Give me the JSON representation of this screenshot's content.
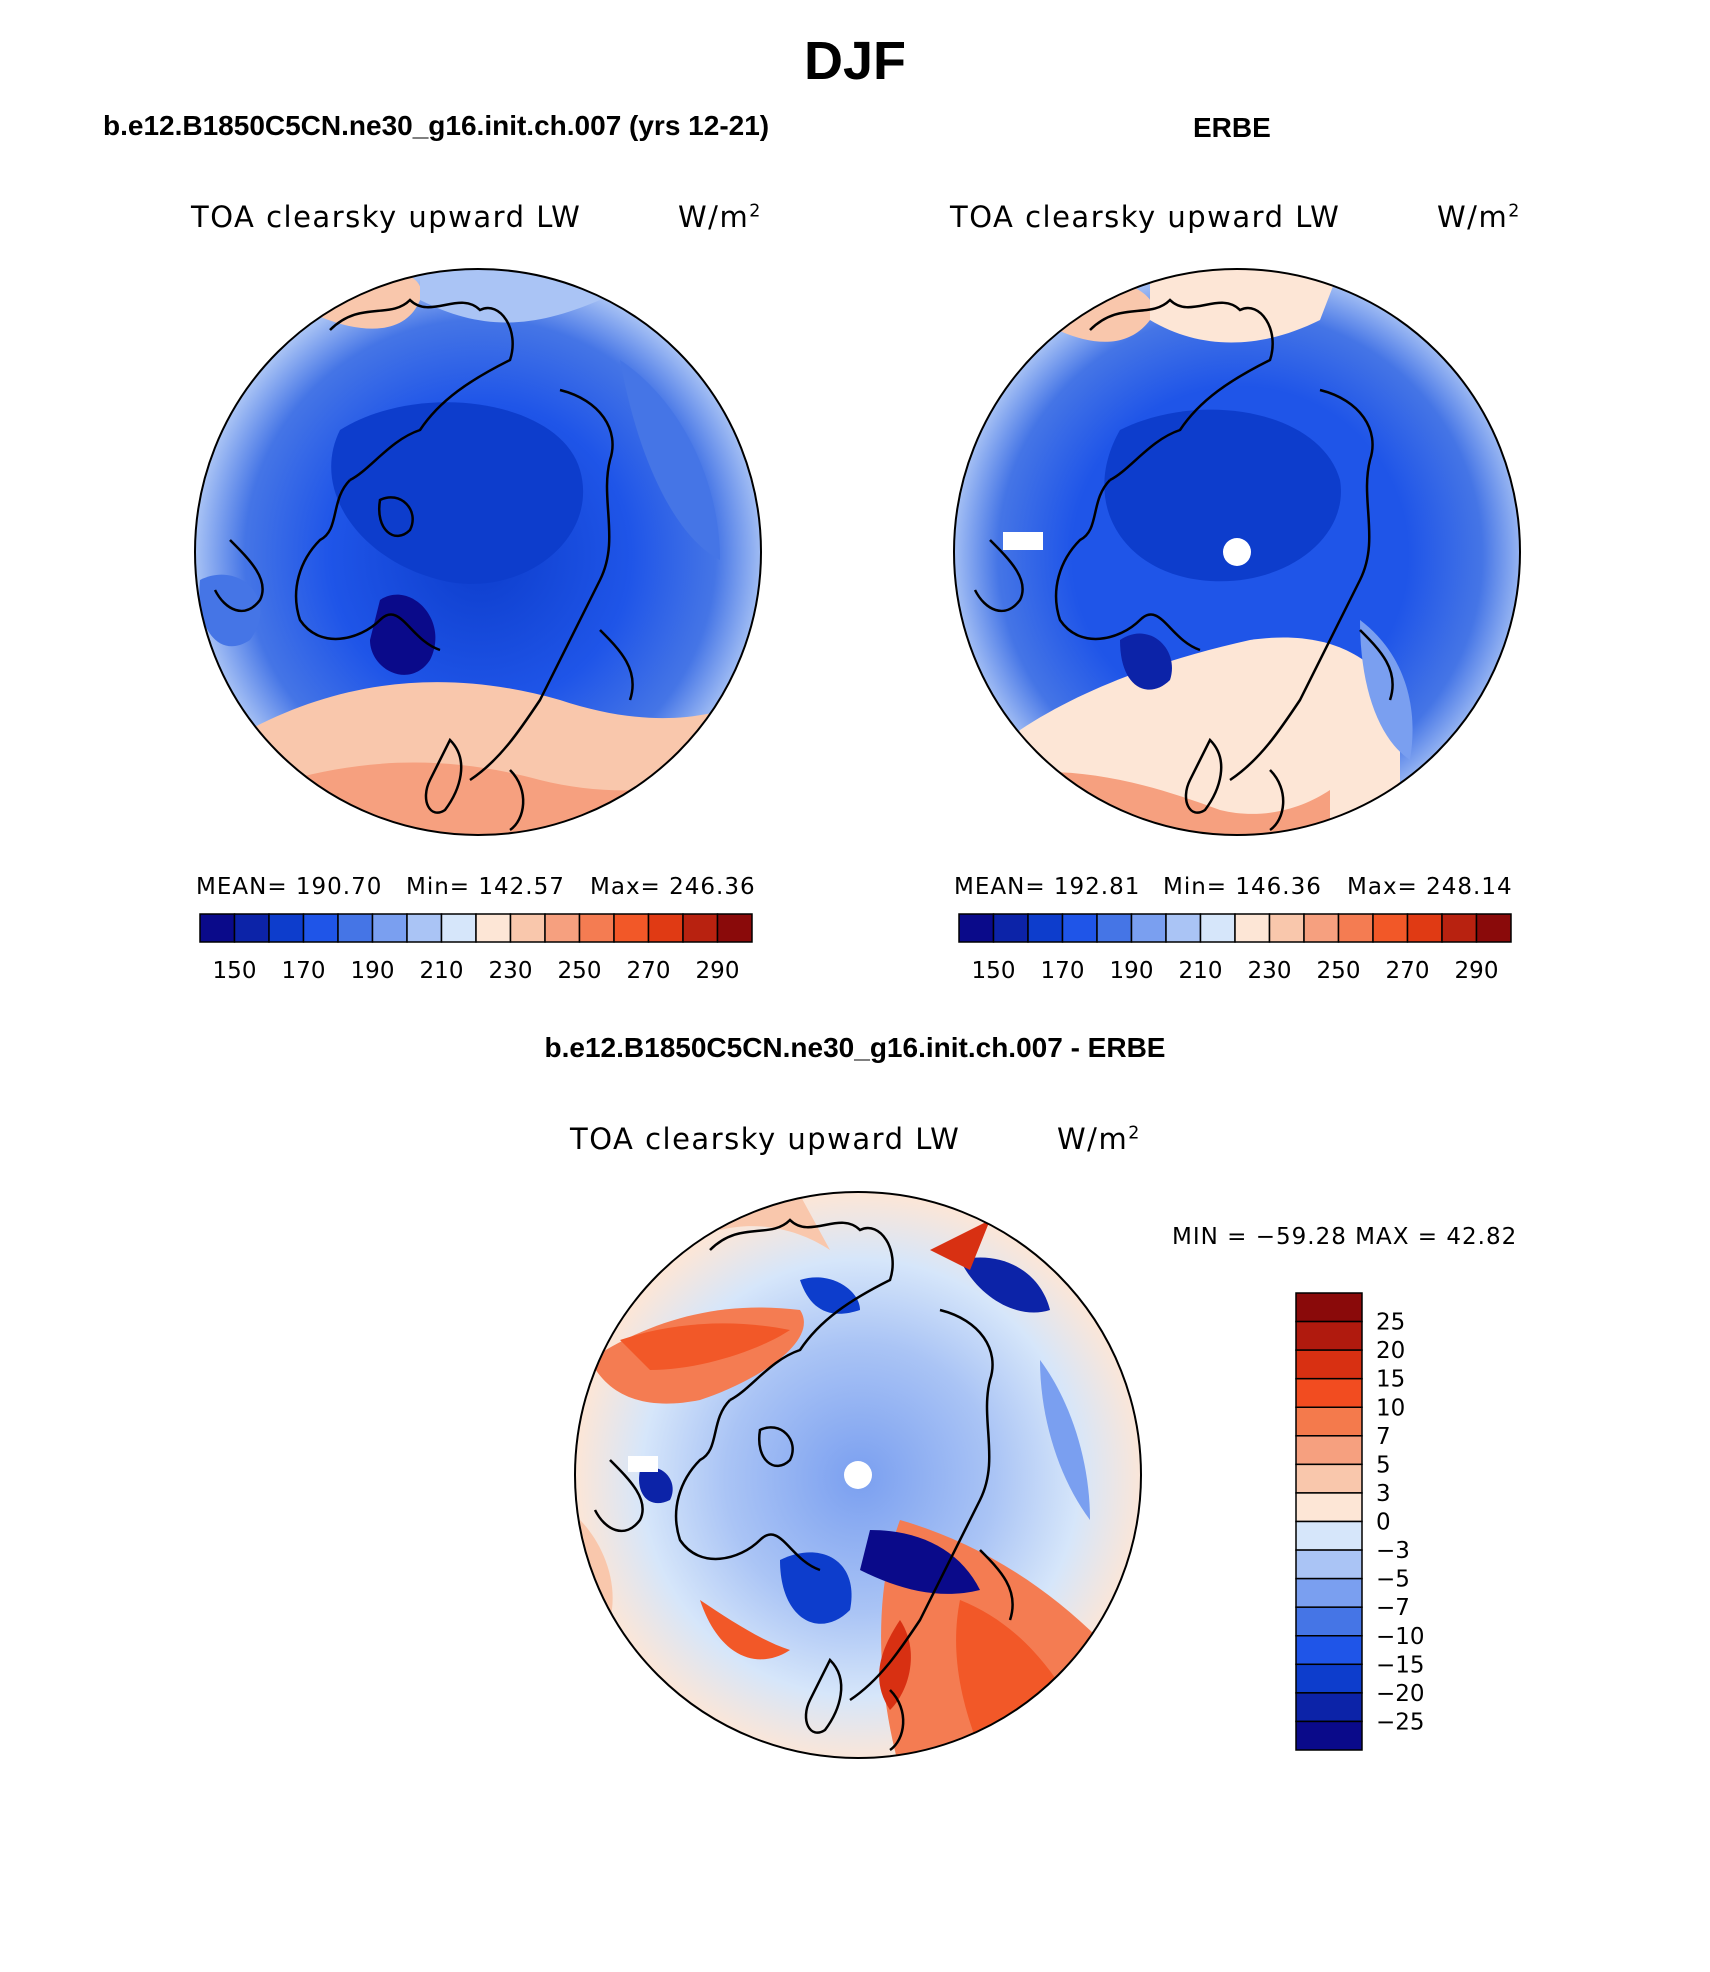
{
  "figure_title": "DJF",
  "panels": {
    "model": {
      "heading": "b.e12.B1850C5CN.ne30_g16.init.ch.007 (yrs 12-21)",
      "var_label": "TOA clearsky upward LW",
      "units_base": "W/m",
      "units_exp": "2",
      "mean": "MEAN= 190.70",
      "min": "Min= 142.57",
      "max": "Max= 246.36"
    },
    "obs": {
      "heading": "ERBE",
      "var_label": "TOA clearsky upward LW",
      "units_base": "W/m",
      "units_exp": "2",
      "mean": "MEAN= 192.81",
      "min": "Min= 146.36",
      "max": "Max= 248.14"
    },
    "diff": {
      "heading": "b.e12.B1850C5CN.ne30_g16.init.ch.007 - ERBE",
      "var_label": "TOA clearsky upward LW",
      "units_base": "W/m",
      "units_exp": "2",
      "minmax": "MIN = −59.28 MAX =   42.82"
    }
  },
  "chart_data": [
    {
      "type": "heatmap",
      "title": "b.e12.B1850C5CN.ne30_g16.init.ch.007 (yrs 12-21)",
      "variable": "TOA clearsky upward LW",
      "units": "W/m2",
      "projection": "north polar stereographic",
      "stats": {
        "mean": 190.7,
        "min": 142.57,
        "max": 246.36
      },
      "colorbar_ticks": [
        "150",
        "170",
        "190",
        "210",
        "230",
        "250",
        "270",
        "290"
      ],
      "colorbar_colors": [
        "#0a0a8a",
        "#0c23a8",
        "#0d3dcc",
        "#1f55e8",
        "#4575e6",
        "#7a9ff0",
        "#aac4f5",
        "#d6e6fa",
        "#fde6d6",
        "#f9c7ac",
        "#f6a07f",
        "#f47c52",
        "#f25828",
        "#e03a14",
        "#b82210",
        "#8a0a0a"
      ]
    },
    {
      "type": "heatmap",
      "title": "ERBE",
      "variable": "TOA clearsky upward LW",
      "units": "W/m2",
      "projection": "north polar stereographic",
      "stats": {
        "mean": 192.81,
        "min": 146.36,
        "max": 248.14
      },
      "colorbar_ticks": [
        "150",
        "170",
        "190",
        "210",
        "230",
        "250",
        "270",
        "290"
      ],
      "colorbar_colors": [
        "#0a0a8a",
        "#0c23a8",
        "#0d3dcc",
        "#1f55e8",
        "#4575e6",
        "#7a9ff0",
        "#aac4f5",
        "#d6e6fa",
        "#fde6d6",
        "#f9c7ac",
        "#f6a07f",
        "#f47c52",
        "#f25828",
        "#e03a14",
        "#b82210",
        "#8a0a0a"
      ]
    },
    {
      "type": "heatmap",
      "title": "b.e12.B1850C5CN.ne30_g16.init.ch.007 - ERBE",
      "variable": "TOA clearsky upward LW",
      "units": "W/m2",
      "projection": "north polar stereographic",
      "stats": {
        "min": -59.28,
        "max": 42.82
      },
      "colorbar_ticks": [
        "25",
        "20",
        "15",
        "10",
        "7",
        "5",
        "3",
        "0",
        "−3",
        "−5",
        "−7",
        "−10",
        "−15",
        "−20",
        "−25"
      ],
      "colorbar_colors": [
        "#8a0a0a",
        "#b01a0e",
        "#d83012",
        "#f24c20",
        "#f47a4c",
        "#f6a07f",
        "#f9c7ac",
        "#fde6d6",
        "#d6e6fa",
        "#aac4f5",
        "#7a9ff0",
        "#4575e6",
        "#1f55e8",
        "#0d3dcc",
        "#0c23a8",
        "#0a0a8a"
      ]
    }
  ]
}
